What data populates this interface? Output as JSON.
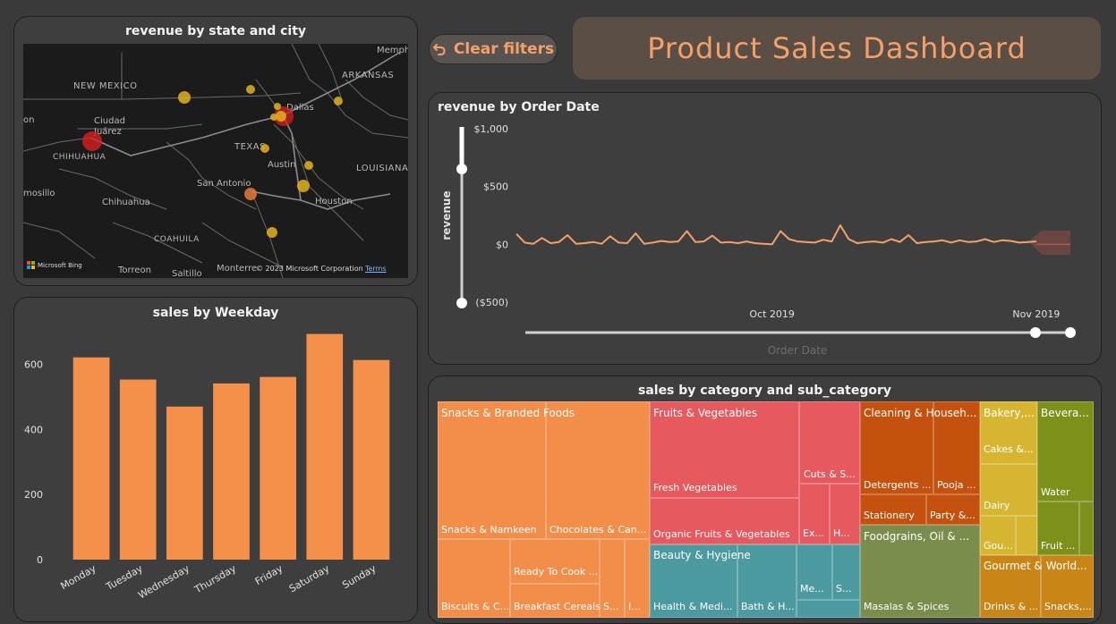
{
  "header": {
    "title": "Product Sales Dashboard",
    "clear_filters_label": "Clear filters"
  },
  "map": {
    "title": "revenue by state and city",
    "labels": {
      "new_mexico": "NEW MEXICO",
      "arkansas": "ARKANSAS",
      "texas": "TEXAS",
      "louisiana": "LOUISIANA",
      "chihuahua_state": "CHIHUAHUA",
      "coahuila": "COAHUILA",
      "memphis": "Memph",
      "dallas": "Dallas",
      "austin": "Austin",
      "houston": "Houston",
      "san_antonio": "San Antonio",
      "ciudad": "Ciudad",
      "juarez": "Juárez",
      "chihuahua_city": "Chihuahua",
      "hermosillo": "mosillo",
      "son": "on",
      "torreon": "Torreon",
      "saltillo": "Saltillo",
      "monterrey": "Monterre"
    },
    "bing": "Microsoft Bing",
    "copyright": "© 2023 Microsoft Corporation",
    "terms": "Terms",
    "colors": {
      "low": "#e0b21f",
      "mid": "#e5793a",
      "high": "#d81f1f"
    }
  },
  "weekday_chart": {
    "title": "sales by Weekday",
    "color": "#f4904a",
    "chart_data": {
      "type": "bar",
      "categories": [
        "Monday",
        "Tuesday",
        "Wednesday",
        "Thursday",
        "Friday",
        "Saturday",
        "Sunday"
      ],
      "values": [
        621,
        553,
        470,
        541,
        561,
        693,
        613
      ],
      "ylim": [
        0,
        700
      ],
      "yticks": [
        0,
        200,
        400,
        600
      ],
      "ytick_labels": [
        "0",
        "200",
        "400",
        "600"
      ],
      "xlabel": "",
      "ylabel": ""
    }
  },
  "line_chart": {
    "title": "revenue by Order Date",
    "color": "#f4a06a",
    "forecast_color": "#7a4a44",
    "chart_data": {
      "type": "line",
      "ylabel": "revenue",
      "xlabel": "Order Date",
      "ylim": [
        -500,
        1000
      ],
      "yticks": [
        1000,
        500,
        0,
        -500
      ],
      "ytick_labels": [
        "$1,000",
        "$500",
        "$0",
        "($500)"
      ],
      "xticks": [
        "Oct 2019",
        "Nov 2019"
      ],
      "start_date": "2019-09-01",
      "end_date": "2019-11-05",
      "values": [
        90,
        15,
        5,
        55,
        10,
        20,
        80,
        5,
        10,
        20,
        5,
        70,
        15,
        10,
        95,
        5,
        15,
        30,
        20,
        25,
        115,
        20,
        25,
        75,
        15,
        20,
        10,
        25,
        10,
        5,
        0,
        115,
        45,
        25,
        20,
        15,
        40,
        25,
        165,
        45,
        10,
        20,
        25,
        15,
        45,
        20,
        80,
        10,
        20,
        25,
        35,
        15,
        35,
        20,
        25,
        45,
        20,
        35,
        30,
        15,
        20,
        25
      ],
      "forecast": {
        "upper": 120,
        "lower": -90
      }
    }
  },
  "treemap": {
    "title": "sales by category and sub_category",
    "chart_data": {
      "type": "treemap",
      "labels": {
        "snacks": "Snacks & Branded Foods",
        "snacks_namkeen": "Snacks & Namkeen",
        "chocolates": "Chocolates & Can...",
        "biscuits": "Biscuits & C...",
        "ready_to_cook": "Ready To Cook ...",
        "breakfast": "Breakfast Cereals",
        "snacks_s": "S...",
        "snacks_i": "I...",
        "fruits": "Fruits & Vegetables",
        "fresh_veg": "Fresh Vegetables",
        "organic": "Organic Fruits & Vegetables",
        "cuts": "Cuts & S...",
        "fruits_ex": "Ex...",
        "fruits_h": "H...",
        "beauty": "Beauty & Hygiene",
        "health": "Health & Medi...",
        "bath": "Bath & H...",
        "beauty_me": "Me...",
        "beauty_s": "S...",
        "cleaning": "Cleaning & Househ...",
        "detergents": "Detergents ...",
        "pooja": "Pooja ...",
        "stationery": "Stationery",
        "party": "Party &...",
        "foodgrains": "Foodgrains, Oil & ...",
        "masalas": "Masalas & Spices",
        "bakery": "Bakery,...",
        "cakes": "Cakes &...",
        "dairy": "Dairy",
        "gou": "Gou...",
        "beverages": "Bevera...",
        "water": "Water",
        "fruit_juice": "Fruit ...",
        "gourmet": "Gourmet & World...",
        "drinks": "Drinks & ...",
        "snacks_g": "Snacks,..."
      },
      "colors": {
        "snacks": "#f28e4a",
        "fruits": "#e65a5f",
        "beauty": "#4a9aa0",
        "cleaning": "#c4510d",
        "foodgrains": "#7a8d4c",
        "bakery": "#d6b631",
        "beverages": "#7d9019",
        "gourmet": "#c98617"
      }
    }
  }
}
